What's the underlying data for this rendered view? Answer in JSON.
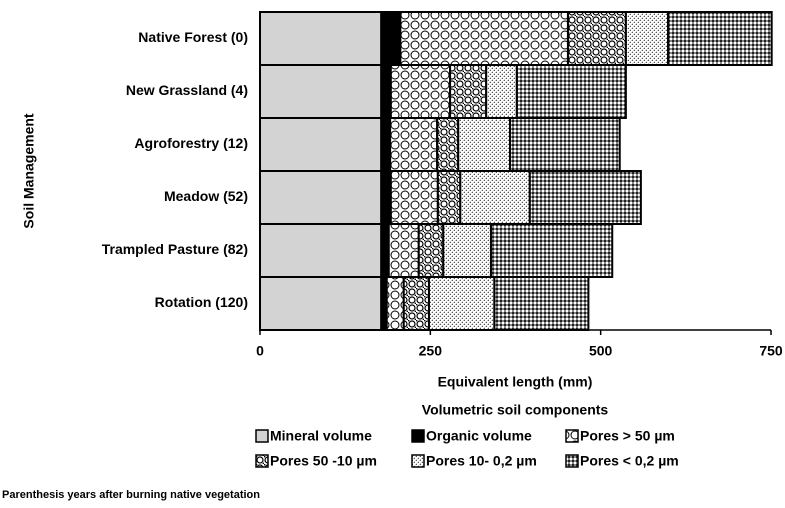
{
  "chart_data": {
    "type": "hbar_stacked",
    "categories": [
      "Native Forest (0)",
      "New Grassland (4)",
      "Agroforestry (12)",
      "Meadow (52)",
      "Trampled Pasture (82)",
      "Rotation (120)"
    ],
    "series": [
      {
        "name": "Mineral volume",
        "color": "#d3d3d3",
        "values": [
          178,
          178,
          178,
          178,
          178,
          178
        ]
      },
      {
        "name": "Organic volume",
        "color": "#000000",
        "values": [
          28,
          14,
          13,
          14,
          11,
          8
        ]
      },
      {
        "name": "Pores > 50 µm",
        "color": "#ffffff",
        "values": [
          246,
          87,
          69,
          69,
          44,
          25
        ]
      },
      {
        "name": "Pores 50 -10 µm",
        "color": "#ffffff",
        "values": [
          85,
          53,
          31,
          33,
          36,
          37
        ]
      },
      {
        "name": "Pores 10- 0,2 µm",
        "color": "#ffffff",
        "values": [
          62,
          45,
          76,
          102,
          70,
          96
        ]
      },
      {
        "name": "Pores < 0,2 µm",
        "color": "#ffffff",
        "values": [
          152,
          160,
          161,
          163,
          178,
          138
        ]
      }
    ],
    "xlim": [
      0,
      750
    ],
    "xticks": [
      0,
      250,
      500,
      750
    ],
    "xlabel": "Equivalent length (mm)",
    "ylabel": "Soil Management",
    "legend_title": "Volumetric soil components",
    "note": "Parenthesis years after burning native vegetation"
  }
}
